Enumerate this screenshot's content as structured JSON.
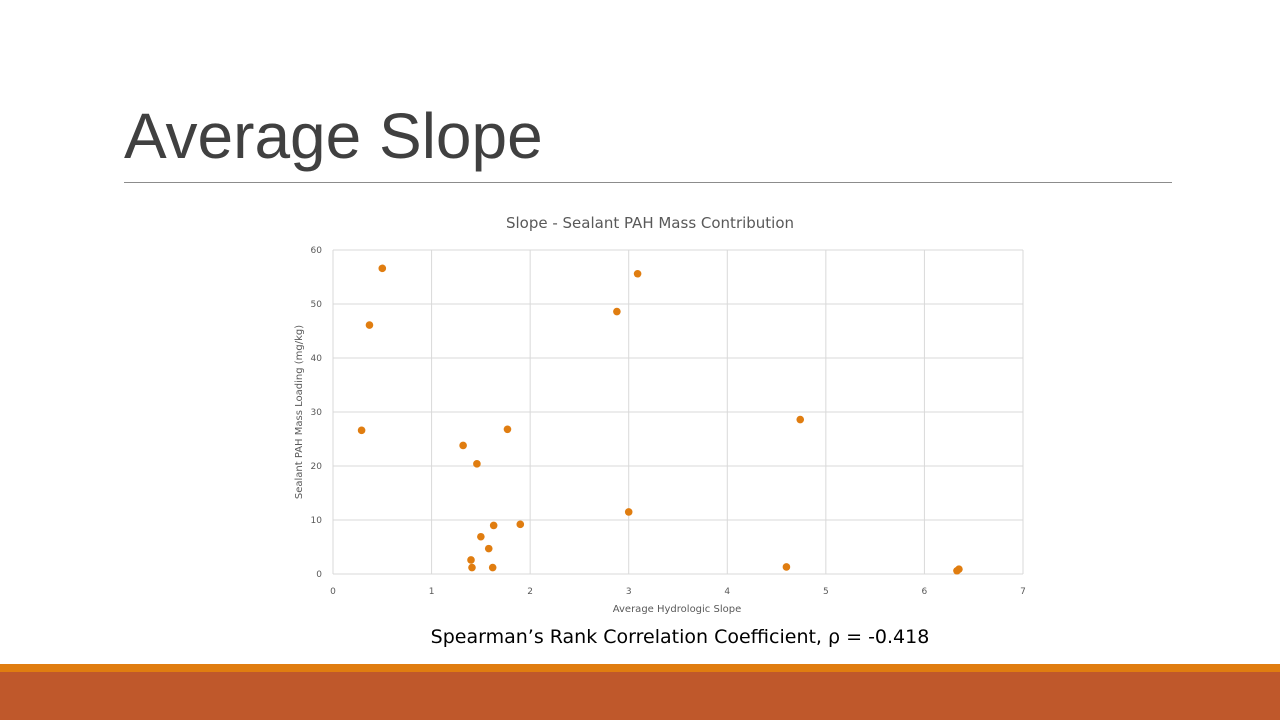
{
  "slide": {
    "title": "Average Slope",
    "caption": "Spearman’s Rank Correlation Coefficient, ρ = -0.418"
  },
  "colors": {
    "marker": "#e07d10",
    "footer_stripe": "#e07d10",
    "footer_bar": "#bf582b",
    "gridline": "#d9d9d9"
  },
  "chart_data": {
    "type": "scatter",
    "title": "Slope - Sealant PAH Mass Contribution",
    "xlabel": "Average Hydrologic Slope",
    "ylabel": "Sealant PAH Mass Loading (mg/kg)",
    "xlim": [
      0,
      7
    ],
    "ylim": [
      0,
      60
    ],
    "xticks": [
      "0",
      "1",
      "2",
      "3",
      "4",
      "5",
      "6",
      "7"
    ],
    "yticks": [
      "0",
      "10",
      "20",
      "30",
      "40",
      "50",
      "60"
    ],
    "grid": true,
    "legend": "none",
    "points": [
      {
        "x": 0.29,
        "y": 26.6
      },
      {
        "x": 0.37,
        "y": 46.1
      },
      {
        "x": 0.5,
        "y": 56.6
      },
      {
        "x": 1.32,
        "y": 23.8
      },
      {
        "x": 1.4,
        "y": 2.6
      },
      {
        "x": 1.41,
        "y": 1.2
      },
      {
        "x": 1.46,
        "y": 20.4
      },
      {
        "x": 1.5,
        "y": 6.9
      },
      {
        "x": 1.58,
        "y": 4.7
      },
      {
        "x": 1.62,
        "y": 1.2
      },
      {
        "x": 1.63,
        "y": 9.0
      },
      {
        "x": 1.77,
        "y": 26.8
      },
      {
        "x": 1.9,
        "y": 9.2
      },
      {
        "x": 2.88,
        "y": 48.6
      },
      {
        "x": 3.0,
        "y": 11.5
      },
      {
        "x": 3.09,
        "y": 55.6
      },
      {
        "x": 4.6,
        "y": 1.3
      },
      {
        "x": 4.74,
        "y": 28.6
      },
      {
        "x": 6.33,
        "y": 0.6
      },
      {
        "x": 6.35,
        "y": 0.9
      }
    ]
  }
}
